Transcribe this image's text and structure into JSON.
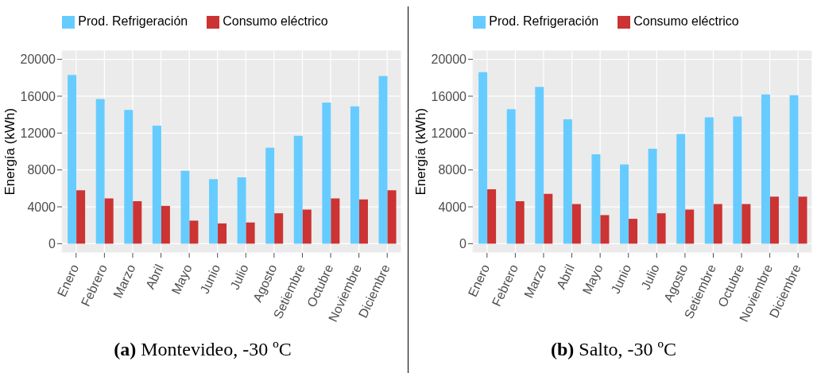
{
  "chart_data": [
    {
      "type": "bar",
      "ylabel": "Energía (kWh)",
      "annotations": [
        "(a) Montevideo, -30 ºC"
      ],
      "categories": [
        "Enero",
        "Febrero",
        "Marzo",
        "Abril",
        "Mayo",
        "Junio",
        "Julio",
        "Agosto",
        "Setiembre",
        "Octubre",
        "Noviembre",
        "Diciembre"
      ],
      "series": [
        {
          "name": "Prod. Refrigeración",
          "color": "#66ccff",
          "values": [
            18300,
            15700,
            14500,
            12800,
            7900,
            7000,
            7200,
            10400,
            11700,
            15300,
            14900,
            18200
          ]
        },
        {
          "name": "Consumo eléctrico",
          "color": "#cc3333",
          "values": [
            5800,
            4900,
            4600,
            4100,
            2500,
            2200,
            2300,
            3300,
            3700,
            4900,
            4800,
            5800
          ]
        }
      ],
      "ylim": [
        -1000,
        21000
      ],
      "yticks": [
        0,
        4000,
        8000,
        12000,
        16000,
        20000
      ],
      "grid": true,
      "legend": "top"
    },
    {
      "type": "bar",
      "ylabel": "Energía (kWh)",
      "annotations": [
        "(b) Salto, -30 ºC"
      ],
      "categories": [
        "Enero",
        "Febrero",
        "Marzo",
        "Abril",
        "Mayo",
        "Junio",
        "Julio",
        "Agosto",
        "Setiembre",
        "Octubre",
        "Noviembre",
        "Diciembre"
      ],
      "series": [
        {
          "name": "Prod. Refrigeración",
          "color": "#66ccff",
          "values": [
            18600,
            14600,
            17000,
            13500,
            9700,
            8600,
            10300,
            11900,
            13700,
            13800,
            16200,
            16100
          ]
        },
        {
          "name": "Consumo eléctrico",
          "color": "#cc3333",
          "values": [
            5900,
            4600,
            5400,
            4300,
            3100,
            2700,
            3300,
            3700,
            4300,
            4300,
            5100,
            5100
          ]
        }
      ],
      "ylim": [
        -1000,
        21000
      ],
      "yticks": [
        0,
        4000,
        8000,
        12000,
        16000,
        20000
      ],
      "grid": true,
      "legend": "top"
    }
  ]
}
